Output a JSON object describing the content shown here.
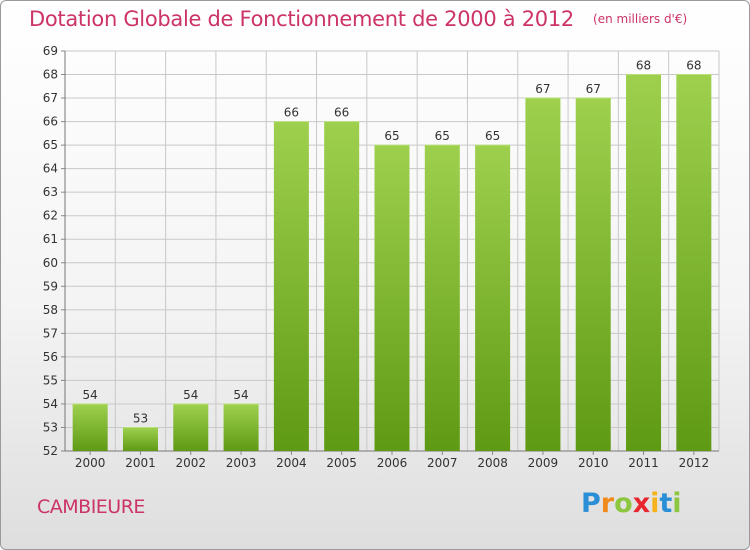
{
  "header": {
    "title": "Dotation Globale de Fonctionnement de 2000 à 2012",
    "unit": "(en milliers d'€)"
  },
  "footer": {
    "commune": "CAMBIEURE",
    "logo_letters": [
      {
        "char": "P",
        "color": "#2a8fd6"
      },
      {
        "char": "r",
        "color": "#f08a1c"
      },
      {
        "char": "o",
        "color": "#8dc63f"
      },
      {
        "char": "x",
        "color": "#e8262d"
      },
      {
        "char": "i",
        "color": "#f6b21b"
      },
      {
        "char": "t",
        "color": "#2a8fd6"
      },
      {
        "char": "i",
        "color": "#8dc63f"
      }
    ]
  },
  "colors": {
    "title": "#cc3366",
    "bar_top": "#9ed04e",
    "bar_bottom": "#5f9a14",
    "grid": "#c8c8c8"
  },
  "chart_data": {
    "type": "bar",
    "title": "Dotation Globale de Fonctionnement de 2000 à 2012",
    "subtitle": "(en milliers d'€)",
    "categories": [
      "2000",
      "2001",
      "2002",
      "2003",
      "2004",
      "2005",
      "2006",
      "2007",
      "2008",
      "2009",
      "2010",
      "2011",
      "2012"
    ],
    "values": [
      54,
      53,
      54,
      54,
      66,
      66,
      65,
      65,
      65,
      67,
      67,
      68,
      68
    ],
    "ylim": [
      52,
      69
    ],
    "yticks": [
      52,
      53,
      54,
      55,
      56,
      57,
      58,
      59,
      60,
      61,
      62,
      63,
      64,
      65,
      66,
      67,
      68,
      69
    ],
    "grid": true,
    "xlabel": "",
    "ylabel": ""
  }
}
